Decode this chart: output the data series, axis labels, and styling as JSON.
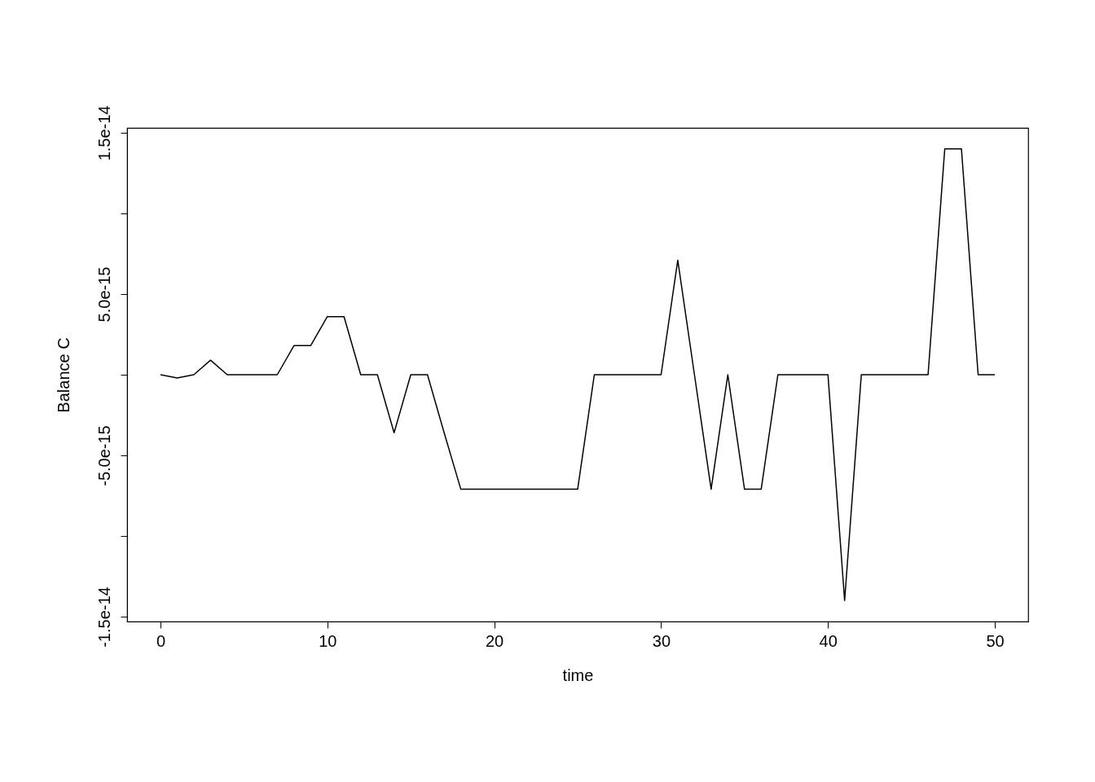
{
  "chart_data": {
    "type": "line",
    "xlabel": "time",
    "ylabel": "Balance C",
    "x": [
      0,
      1,
      2,
      3,
      4,
      5,
      6,
      7,
      8,
      9,
      10,
      11,
      12,
      13,
      14,
      15,
      16,
      17,
      18,
      19,
      20,
      21,
      22,
      23,
      24,
      25,
      26,
      27,
      28,
      29,
      30,
      31,
      32,
      33,
      34,
      35,
      36,
      37,
      38,
      39,
      40,
      41,
      42,
      43,
      44,
      45,
      46,
      47,
      48,
      49,
      50
    ],
    "series": [
      {
        "color": "#000000",
        "values": [
          0,
          -2e-16,
          0,
          9e-16,
          0,
          0,
          0,
          0,
          1.8e-15,
          1.8e-15,
          3.6e-15,
          3.6e-15,
          0,
          0,
          -3.6e-15,
          0,
          0,
          -3.6e-15,
          -7.1e-15,
          -7.1e-15,
          -7.1e-15,
          -7.1e-15,
          -7.1e-15,
          -7.1e-15,
          -7.1e-15,
          -7.1e-15,
          0,
          0,
          0,
          0,
          0,
          7.1e-15,
          0,
          -7.1e-15,
          0,
          -7.1e-15,
          -7.1e-15,
          0,
          0,
          0,
          0,
          -1.4e-14,
          0,
          0,
          0,
          0,
          0,
          1.4e-14,
          1.4e-14,
          0,
          0
        ]
      }
    ],
    "xlim": [
      -2,
      52
    ],
    "ylim": [
      -1.53e-14,
      1.53e-14
    ],
    "xticks": [
      0,
      10,
      20,
      30,
      40,
      50
    ],
    "yticks": [
      {
        "value": -1.5e-14,
        "label": "-1.5e-14"
      },
      {
        "value": -1e-14,
        "label": null
      },
      {
        "value": -5e-15,
        "label": "-5.0e-15"
      },
      {
        "value": 0,
        "label": null
      },
      {
        "value": 5e-15,
        "label": "5.0e-15"
      },
      {
        "value": 1e-14,
        "label": null
      },
      {
        "value": 1.5e-14,
        "label": "1.5e-14"
      }
    ],
    "grid": false,
    "marker": "none",
    "line_style": "solid"
  }
}
